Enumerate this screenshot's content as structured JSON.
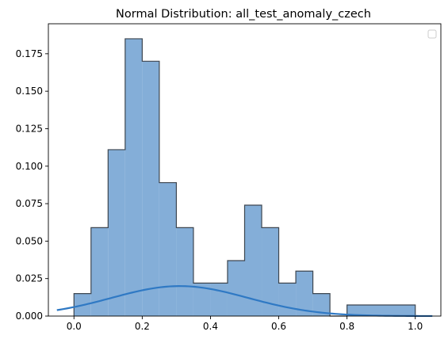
{
  "chart_data": {
    "type": "bar",
    "title": "Normal Distribution: all_test_anomaly_czech",
    "xlabel": "",
    "ylabel": "",
    "xlim": [
      -0.075,
      1.075
    ],
    "ylim": [
      0,
      0.195
    ],
    "xticks": [
      0.0,
      0.2,
      0.4,
      0.6,
      0.8,
      1.0
    ],
    "xtick_labels": [
      "0.0",
      "0.2",
      "0.4",
      "0.6",
      "0.8",
      "1.0"
    ],
    "yticks": [
      0.0,
      0.025,
      0.05,
      0.075,
      0.1,
      0.125,
      0.15,
      0.175
    ],
    "ytick_labels": [
      "0.000",
      "0.025",
      "0.050",
      "0.075",
      "0.100",
      "0.125",
      "0.150",
      "0.175"
    ],
    "grid": false,
    "legend": "top-right",
    "bar_color": "#84aed8",
    "edge_color": "#3d4650",
    "curve_color": "#2f79c4",
    "histogram": {
      "bin_edges": [
        0.0,
        0.05,
        0.1,
        0.15,
        0.2,
        0.25,
        0.3,
        0.35,
        0.4,
        0.45,
        0.5,
        0.55,
        0.6,
        0.65,
        0.7,
        0.75,
        0.8,
        1.0
      ],
      "values": [
        0.015,
        0.059,
        0.111,
        0.185,
        0.17,
        0.089,
        0.059,
        0.022,
        0.022,
        0.037,
        0.074,
        0.059,
        0.022,
        0.03,
        0.015,
        0.0,
        0.0074
      ]
    },
    "normal_curve": {
      "x_range": [
        -0.05,
        1.05
      ],
      "mean": 0.31,
      "peak": 0.02,
      "std": 0.2
    }
  }
}
